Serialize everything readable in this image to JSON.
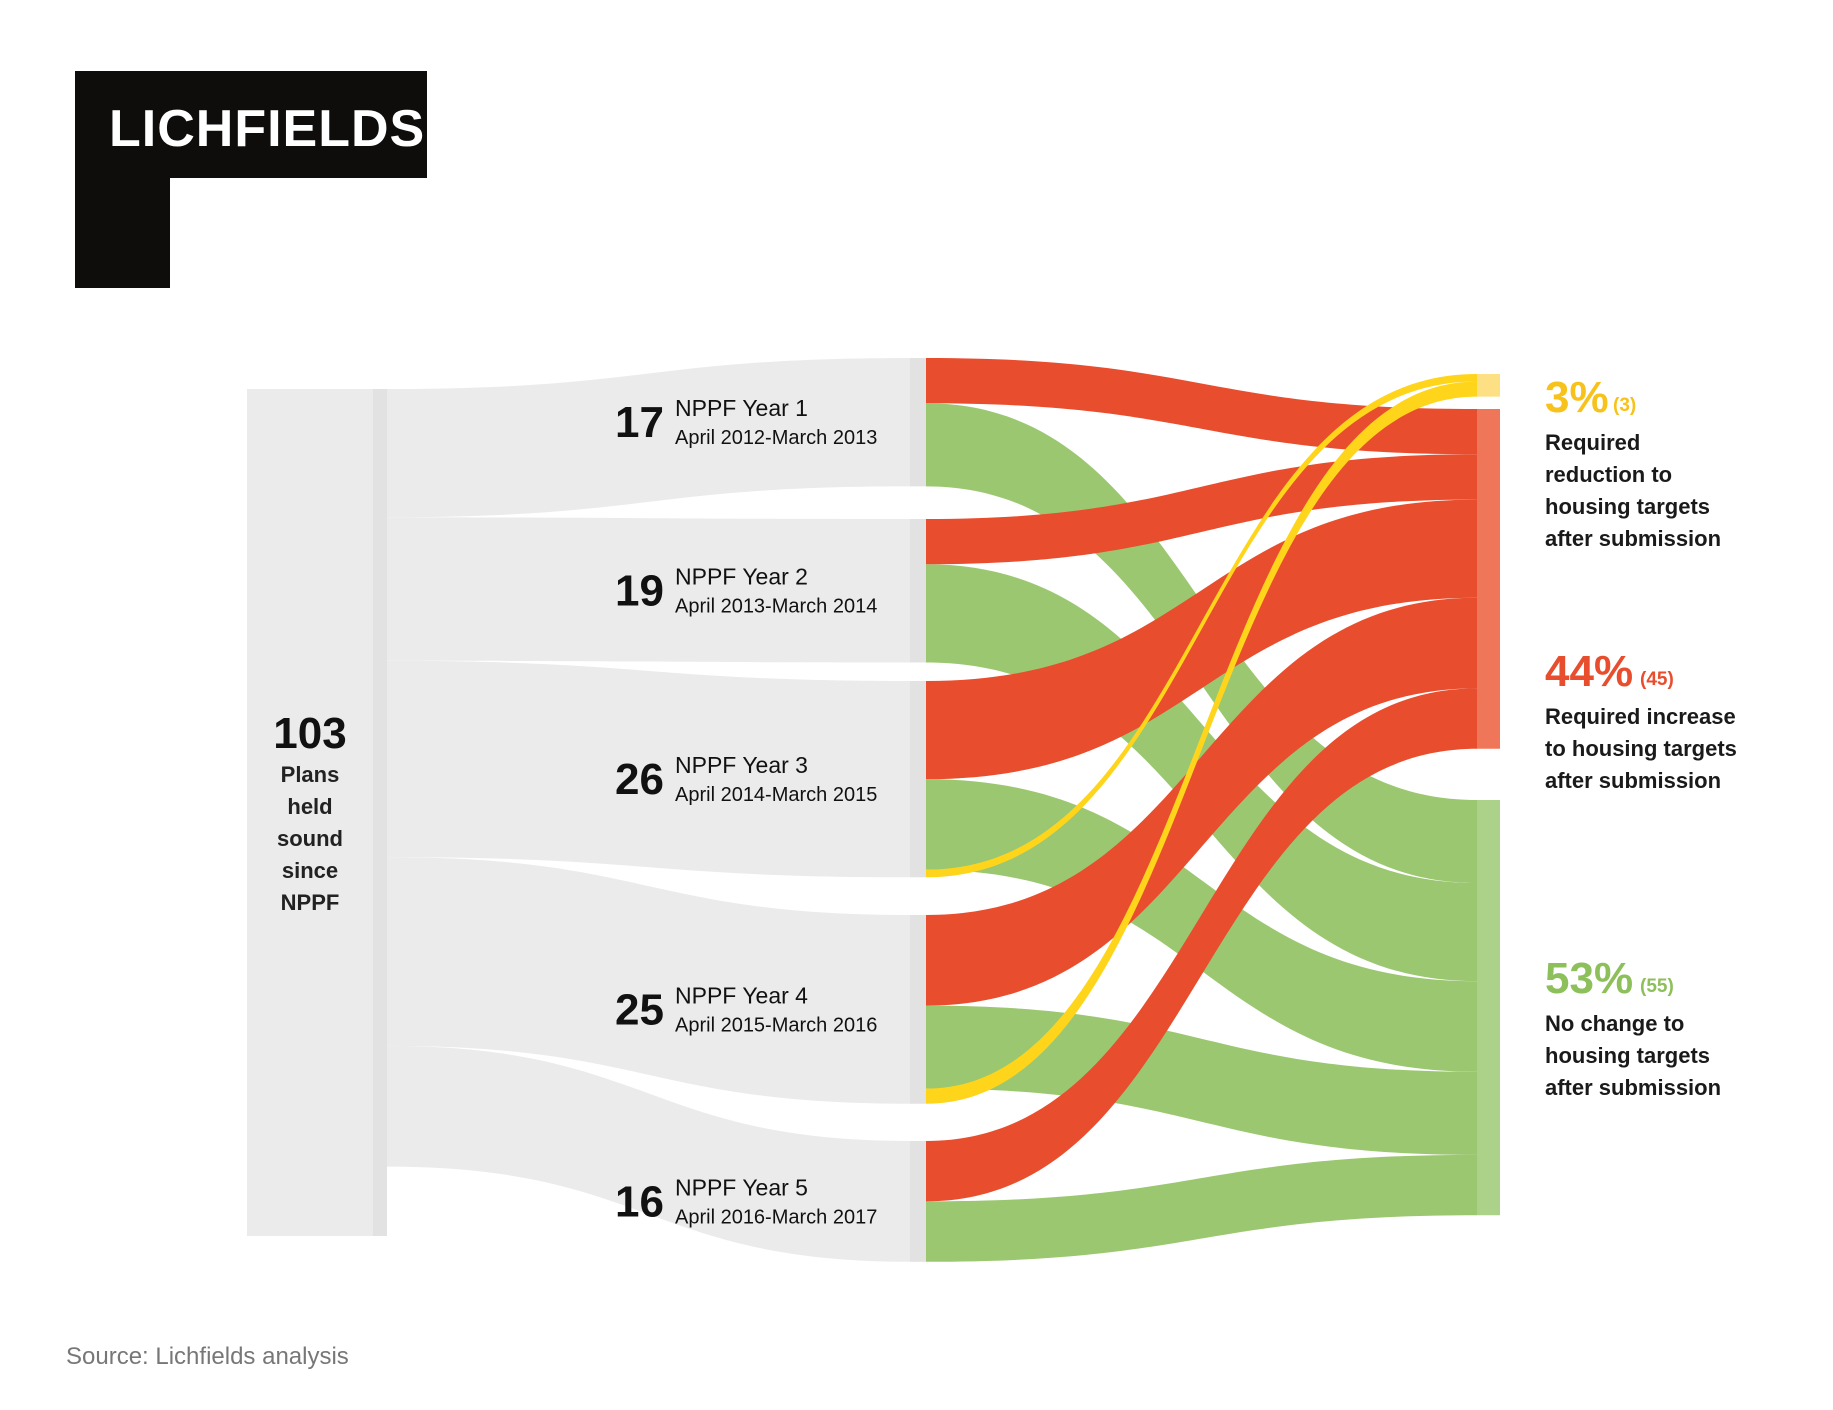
{
  "logo": {
    "text": "LICHFIELDS"
  },
  "total": {
    "value": "103",
    "label_lines": [
      "Plans",
      "held",
      "sound",
      "since",
      "NPPF"
    ]
  },
  "chart_data": {
    "type": "sankey",
    "periods": [
      {
        "count": "17",
        "name": "NPPF Year 1",
        "dates": "April 2012-March 2013",
        "reduction": 0,
        "increase": 6,
        "no_change": 11
      },
      {
        "count": "19",
        "name": "NPPF Year 2",
        "dates": "April 2013-March 2014",
        "reduction": 0,
        "increase": 6,
        "no_change": 13
      },
      {
        "count": "26",
        "name": "NPPF Year 3",
        "dates": "April 2014-March 2015",
        "reduction": 1,
        "increase": 13,
        "no_change": 12
      },
      {
        "count": "25",
        "name": "NPPF Year 4",
        "dates": "April 2015-March 2016",
        "reduction": 2,
        "increase": 12,
        "no_change": 11
      },
      {
        "count": "16",
        "name": "NPPF Year 5",
        "dates": "April 2016-March 2017",
        "reduction": 0,
        "increase": 8,
        "no_change": 8
      }
    ],
    "outcomes": [
      {
        "key": "reduction",
        "pct": "3%",
        "count": "(3)",
        "color": "#f7c21b",
        "label_lines": [
          "Required",
          "reduction to",
          "housing targets",
          "after submission"
        ]
      },
      {
        "key": "increase",
        "pct": "44%",
        "count": "(45)",
        "color": "#e84e2e",
        "label_lines": [
          "Required increase",
          "to housing targets",
          "after submission"
        ]
      },
      {
        "key": "no_change",
        "pct": "53%",
        "count": "(55)",
        "color": "#8dbf5b",
        "label_lines": [
          "No change to",
          "housing targets",
          "after submission"
        ]
      }
    ],
    "flow_colors": {
      "reduction": "#ffd51c",
      "increase": "#e84e2e",
      "no_change": "#96c468"
    }
  },
  "source": "Source: Lichfields analysis"
}
